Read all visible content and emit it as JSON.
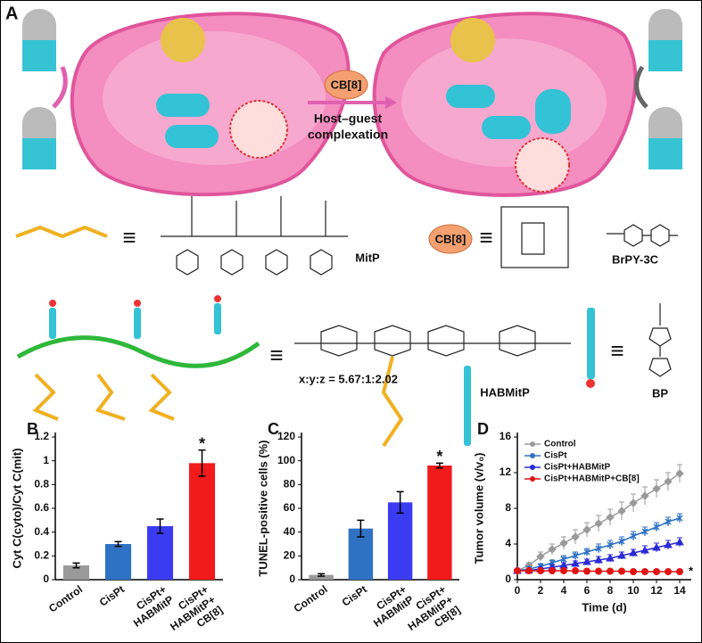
{
  "schematic": {
    "panel": "A",
    "cb8": "CB[8]",
    "host_guest": [
      "Host–guest",
      "complexation"
    ],
    "equiv": "≡",
    "mitp": "MitP",
    "brpy": "BrPY-3C",
    "ratio": "x:y:z = 5.67:1:2.02",
    "habmitp": "HABMitP",
    "bp": "BP"
  },
  "chart_data": [
    {
      "type": "bar",
      "panel": "B",
      "ylabel": "Cyt C(cyto)/Cyt C(mit)",
      "categories": [
        [
          "Control"
        ],
        [
          "CisPt"
        ],
        [
          "CisPt+",
          "HABMitP"
        ],
        [
          "CisPt+",
          "HABMitP+",
          "CB[8]"
        ]
      ],
      "values": [
        0.12,
        0.3,
        0.45,
        0.98
      ],
      "errors": [
        0.02,
        0.02,
        0.06,
        0.11
      ],
      "colors": [
        "#9a9a9a",
        "#2f72c4",
        "#3b3cf2",
        "#f21a1a"
      ],
      "ylim": [
        0,
        1.2
      ],
      "yticks": [
        0,
        0.2,
        0.4,
        0.6,
        0.8,
        1,
        1.2
      ],
      "annotation": "*"
    },
    {
      "type": "bar",
      "panel": "C",
      "ylabel": "TUNEL-positive cells (%)",
      "categories": [
        [
          "Control"
        ],
        [
          "CisPt"
        ],
        [
          "CisPt+",
          "HABMitP"
        ],
        [
          "CisPt+",
          "HABMitP+",
          "CB[8]"
        ]
      ],
      "values": [
        4,
        43,
        65,
        96
      ],
      "errors": [
        1,
        7,
        9,
        2
      ],
      "colors": [
        "#9a9a9a",
        "#2f72c4",
        "#3b3cf2",
        "#f21a1a"
      ],
      "ylim": [
        0,
        120
      ],
      "yticks": [
        0,
        20,
        40,
        60,
        80,
        100,
        120
      ],
      "annotation": "*"
    },
    {
      "type": "line",
      "panel": "D",
      "ylabel": "Tumor volume (v/v₀)",
      "xlabel": "Time (d)",
      "x": [
        0,
        1,
        2,
        3,
        4,
        5,
        6,
        7,
        8,
        9,
        10,
        11,
        12,
        13,
        14
      ],
      "series": [
        {
          "name": "Control",
          "color": "#9a9a9a",
          "marker": "diamond",
          "values": [
            1,
            1.6,
            2.6,
            3.4,
            4.1,
            4.8,
            5.6,
            6.3,
            7.0,
            7.7,
            8.6,
            9.4,
            10.2,
            11.0,
            11.9
          ],
          "errors": [
            0,
            0.3,
            0.5,
            0.6,
            0.7,
            0.8,
            0.8,
            0.9,
            0.9,
            1.0,
            1.0,
            1.0,
            1.0,
            1.0,
            1.0
          ]
        },
        {
          "name": "CisPt",
          "color": "#2f72c4",
          "marker": "star",
          "values": [
            1,
            1.2,
            1.5,
            1.9,
            2.3,
            2.7,
            3.1,
            3.5,
            3.9,
            4.3,
            4.9,
            5.4,
            5.9,
            6.5,
            6.9
          ],
          "errors": [
            0,
            0.2,
            0.3,
            0.3,
            0.4,
            0.4,
            0.4,
            0.5,
            0.5,
            0.5,
            0.5,
            0.5,
            0.5,
            0.5,
            0.5
          ]
        },
        {
          "name": "CisPt+HABMitP",
          "color": "#2b2bd6",
          "marker": "triangle",
          "values": [
            1,
            1.05,
            1.2,
            1.4,
            1.6,
            1.8,
            2.0,
            2.2,
            2.4,
            2.7,
            3.0,
            3.3,
            3.6,
            3.9,
            4.2
          ],
          "errors": [
            0,
            0.2,
            0.2,
            0.3,
            0.3,
            0.3,
            0.3,
            0.4,
            0.4,
            0.4,
            0.4,
            0.5,
            0.5,
            0.5,
            0.5
          ]
        },
        {
          "name": "CisPt+HABMitP+CB[8]",
          "color": "#e01414",
          "marker": "circle",
          "values": [
            1,
            1,
            1,
            1,
            1,
            1,
            0.95,
            0.95,
            0.95,
            0.95,
            0.9,
            0.9,
            0.9,
            0.9,
            0.9
          ],
          "errors": [
            0.1,
            0.1,
            0.1,
            0.1,
            0.1,
            0.1,
            0.1,
            0.1,
            0.1,
            0.1,
            0.1,
            0.1,
            0.1,
            0.1,
            0.1
          ]
        }
      ],
      "xlim": [
        0,
        15
      ],
      "xticks": [
        0,
        2,
        4,
        6,
        8,
        10,
        12,
        14
      ],
      "ylim": [
        0,
        16
      ],
      "yticks": [
        0,
        4,
        8,
        12,
        16
      ],
      "legend": "upper-left",
      "annotation": "*"
    }
  ]
}
